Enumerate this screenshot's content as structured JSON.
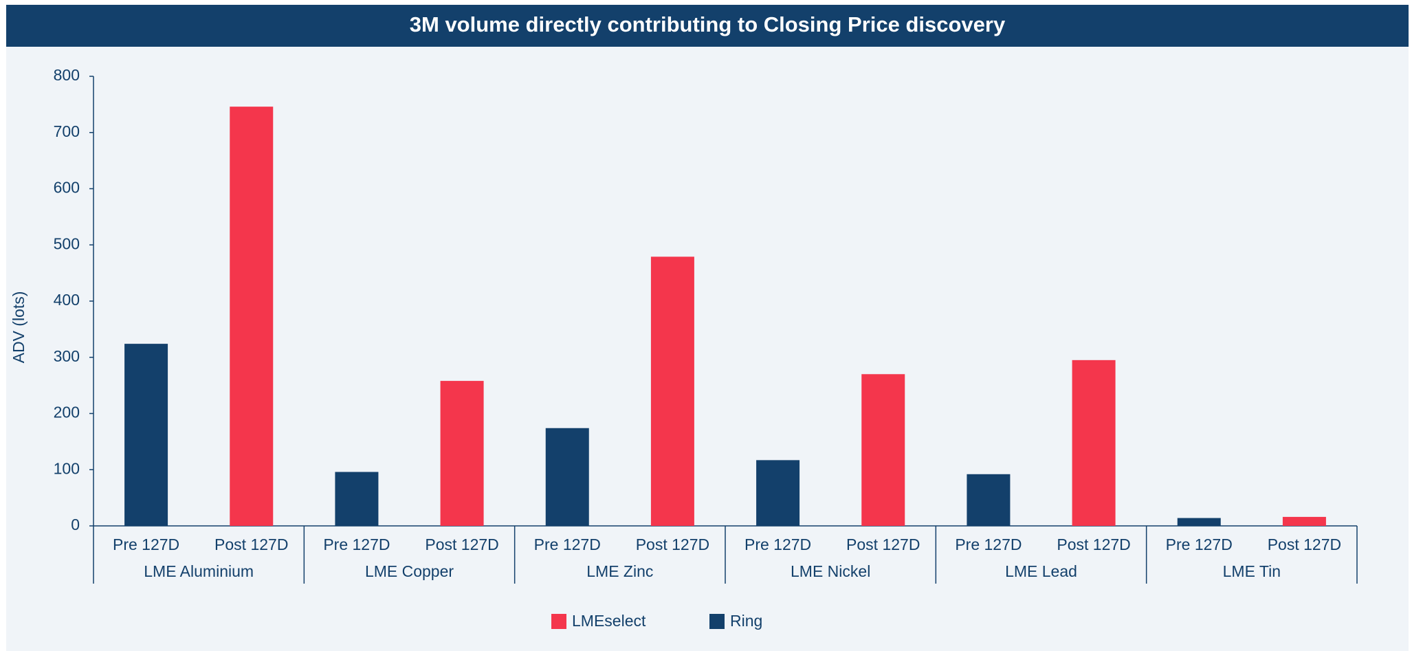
{
  "chart_data": {
    "type": "bar",
    "title": "3M volume directly contributing to Closing Price discovery",
    "y_label": "ADV (lots)",
    "categories": [
      {
        "group": "LME Aluminium",
        "labels": [
          "Pre 127D",
          "Post 127D"
        ]
      },
      {
        "group": "LME Copper",
        "labels": [
          "Pre 127D",
          "Post 127D"
        ]
      },
      {
        "group": "LME Zinc",
        "labels": [
          "Pre 127D",
          "Post 127D"
        ]
      },
      {
        "group": "LME Nickel",
        "labels": [
          "Pre 127D",
          "Post 127D"
        ]
      },
      {
        "group": "LME Lead",
        "labels": [
          "Pre 127D",
          "Post 127D"
        ]
      },
      {
        "group": "LME Tin",
        "labels": [
          "Pre 127D",
          "Post 127D"
        ]
      }
    ],
    "series": [
      {
        "name": "Ring",
        "color": "#13406b",
        "values": [
          324,
          96,
          174,
          117,
          92,
          14
        ]
      },
      {
        "name": "LMEselect",
        "color": "#f4364c",
        "values": [
          746,
          258,
          479,
          270,
          295,
          16
        ]
      }
    ],
    "legend_order": [
      1,
      0
    ],
    "ylim": [
      0,
      800
    ],
    "yticks": [
      0,
      100,
      200,
      300,
      400,
      500,
      600,
      700,
      800
    ],
    "grid": false
  }
}
